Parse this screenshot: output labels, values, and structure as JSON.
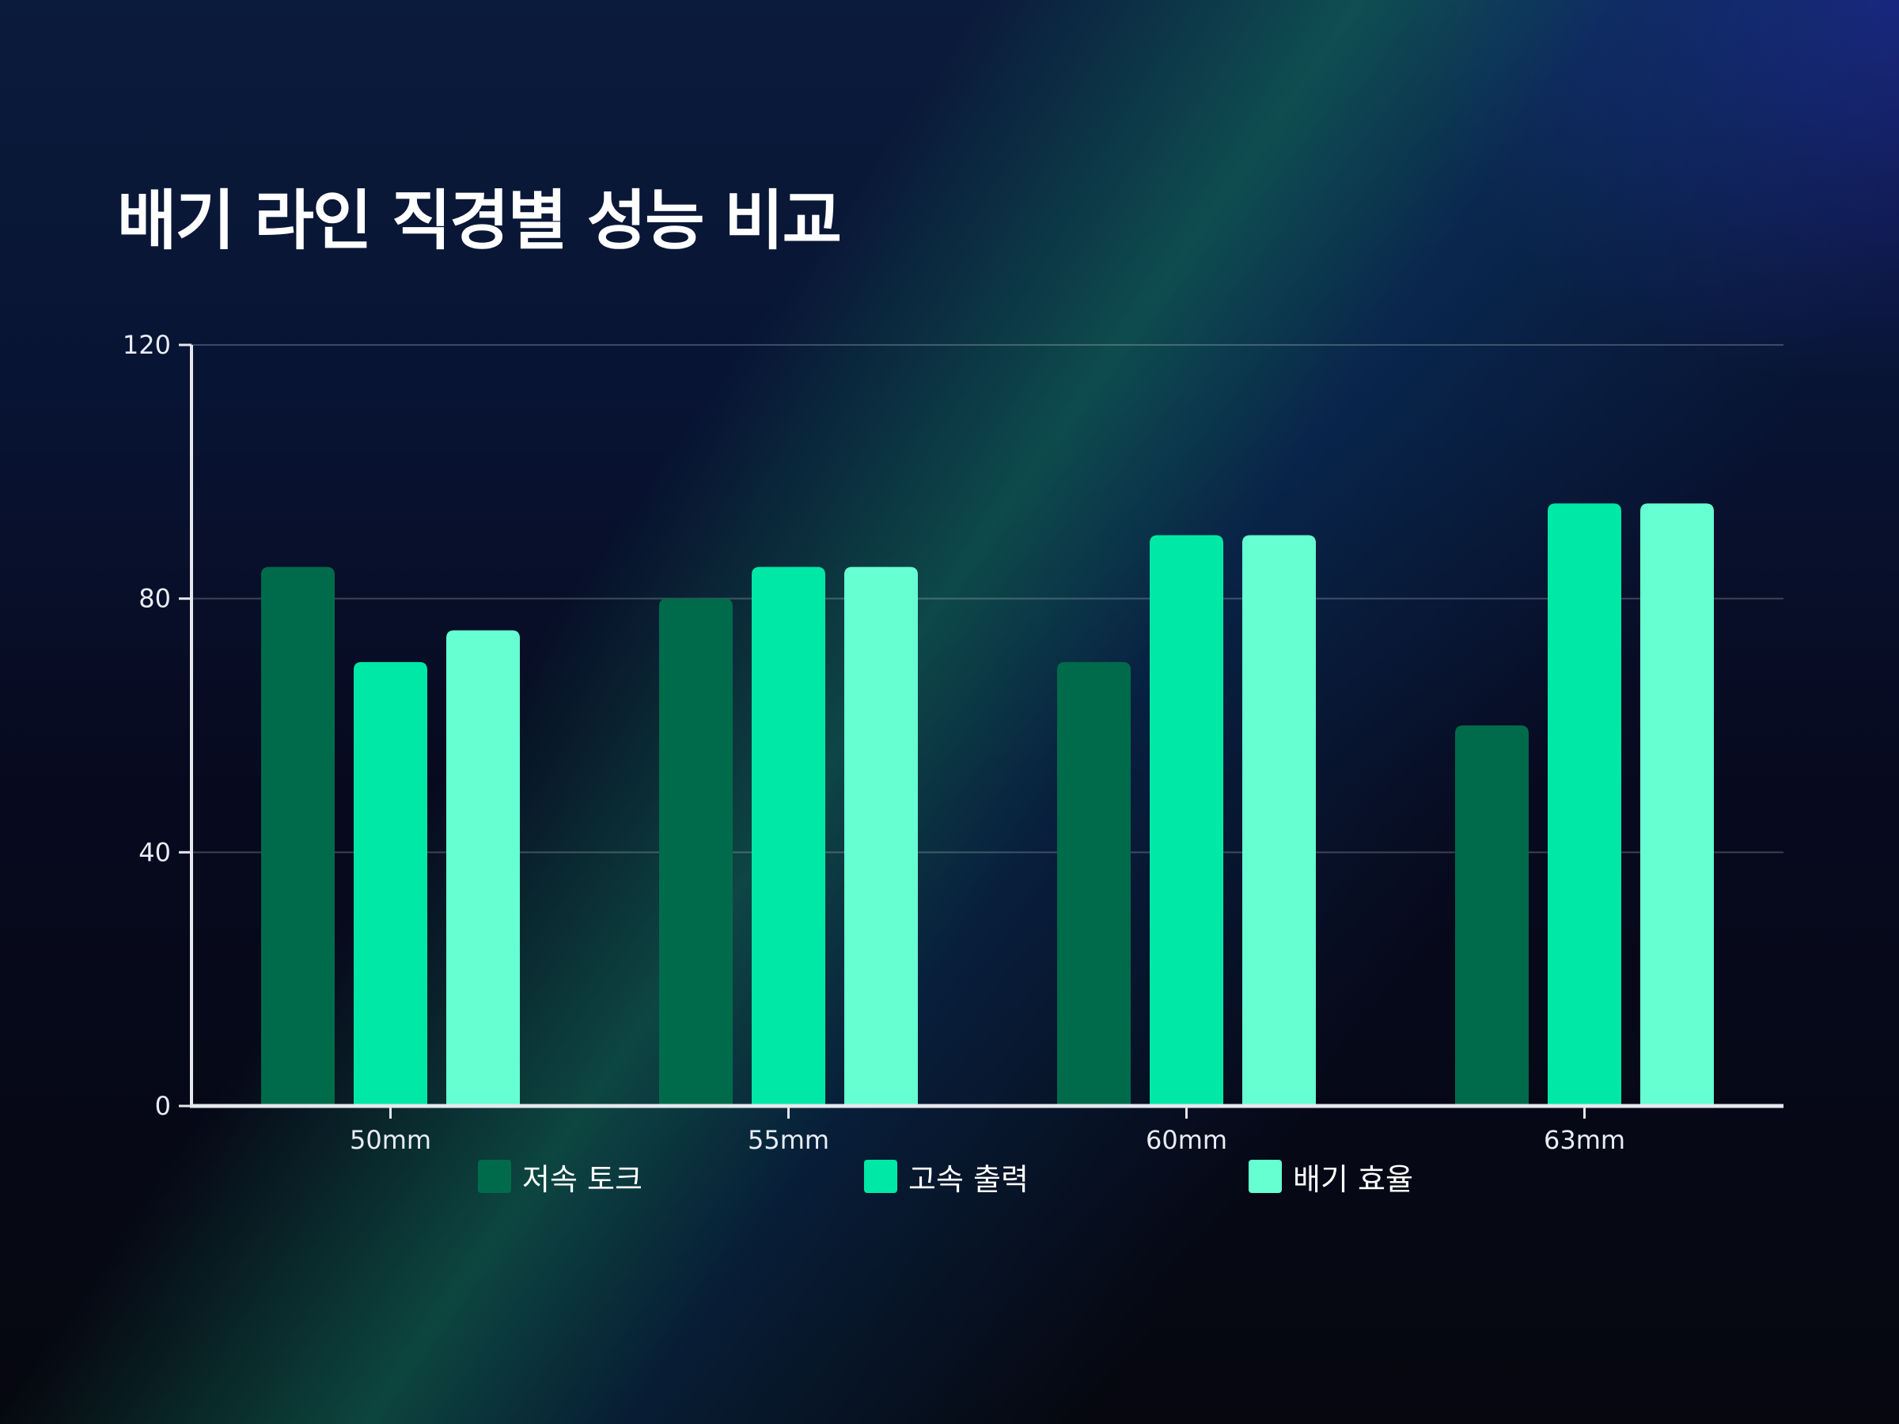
{
  "chart_data": {
    "type": "bar",
    "title": "배기 라인 직경별 성능 비교",
    "xlabel": "",
    "ylabel": "",
    "categories": [
      "50mm",
      "55mm",
      "60mm",
      "63mm"
    ],
    "series": [
      {
        "name": "저속 토크",
        "values": [
          85,
          80,
          70,
          60
        ],
        "color": "#006b4b"
      },
      {
        "name": "고속 출력",
        "values": [
          70,
          85,
          90,
          95
        ],
        "color": "#00e8a6"
      },
      {
        "name": "배기 효율",
        "values": [
          75,
          85,
          90,
          95
        ],
        "color": "#66ffd1"
      }
    ],
    "ylim": [
      0,
      120
    ],
    "yticks": [
      0,
      40,
      80,
      120
    ],
    "grid": true,
    "legend_position": "bottom"
  }
}
